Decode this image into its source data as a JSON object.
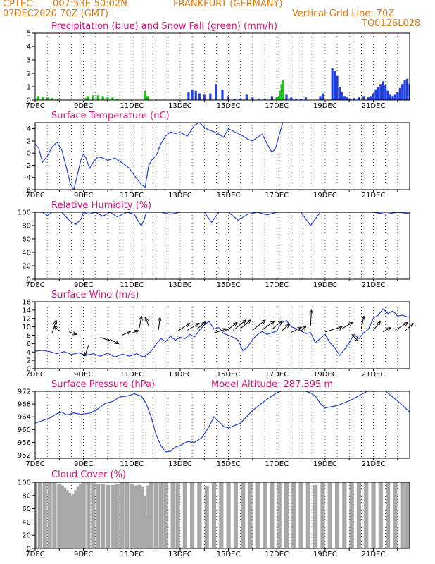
{
  "header": {
    "line1_left": "CPTEC:",
    "coords": "007:53E-50:02N",
    "location": "FRANKFURT (GERMANY)",
    "date": "07DEC2020 70Z (GMT)",
    "vgrid": "Vertical Grid Line: 70Z",
    "code": "TQ0126L028"
  },
  "x_categories": [
    "7DEC",
    "9DEC",
    "11DEC",
    "13DEC",
    "15DEC",
    "17DEC",
    "19DEC",
    "21DEC"
  ],
  "colors": {
    "blue": "#1f3fe0",
    "green": "#18c418",
    "gray": "#a8a8a8",
    "title": "#e0107a",
    "header": "#e07a10"
  },
  "chart_data": [
    {
      "type": "bar",
      "title": "Precipitation (blue) and Snow Fall (green) (mm/h)",
      "xlim": [
        0,
        15.5
      ],
      "ylim": [
        0,
        5
      ],
      "yticks": [
        0,
        1,
        2,
        3,
        4,
        5
      ],
      "series": [
        {
          "name": "Precipitation",
          "color": "#1f3fe0",
          "x": [
            6.35,
            6.5,
            6.65,
            6.8,
            7.0,
            7.25,
            7.5,
            7.75,
            8.0,
            8.25,
            8.5,
            8.75,
            9.0,
            9.25,
            9.5,
            9.8,
            10.0,
            10.2,
            10.4,
            10.6,
            10.8,
            11.0,
            11.2,
            11.8,
            11.9,
            12.3,
            12.4,
            12.5,
            12.6,
            12.7,
            12.8,
            12.9,
            13.0,
            13.2,
            13.4,
            13.6,
            13.8,
            13.9,
            14.0,
            14.1,
            14.2,
            14.3,
            14.4,
            14.5,
            14.6,
            14.7,
            14.8,
            14.9,
            15.0,
            15.1,
            15.2,
            15.3,
            15.4,
            15.5
          ],
          "values": [
            0.6,
            0.8,
            0.7,
            0.5,
            0.4,
            0.5,
            1.2,
            0.8,
            0.3,
            0.1,
            0.1,
            0.4,
            0.2,
            0.1,
            0.1,
            0.3,
            0.2,
            0.3,
            0.4,
            0.2,
            0.1,
            0.1,
            0.2,
            0.3,
            0.5,
            2.4,
            2.2,
            1.8,
            1.0,
            0.6,
            0.3,
            0.2,
            0.1,
            0.15,
            0.2,
            0.3,
            0.2,
            0.3,
            0.5,
            0.8,
            1.0,
            1.2,
            1.4,
            1.1,
            0.7,
            0.4,
            0.3,
            0.4,
            0.6,
            0.9,
            1.2,
            1.5,
            1.6,
            1.2
          ]
        },
        {
          "name": "Snow Fall",
          "color": "#18c418",
          "x": [
            0.1,
            0.3,
            0.5,
            0.7,
            0.9,
            2.1,
            2.2,
            2.4,
            2.6,
            2.8,
            3.0,
            3.2,
            3.4,
            4.55,
            4.65,
            10.0,
            10.1,
            10.15,
            10.2,
            10.25
          ],
          "values": [
            0.3,
            0.25,
            0.2,
            0.15,
            0.1,
            0.15,
            0.3,
            0.35,
            0.35,
            0.3,
            0.25,
            0.2,
            0.1,
            0.7,
            0.3,
            0.2,
            0.3,
            0.7,
            1.2,
            1.5
          ]
        }
      ]
    },
    {
      "type": "line",
      "title": "Surface Temperature (nC)",
      "xlim": [
        0,
        15.5
      ],
      "ylim": [
        -6,
        5
      ],
      "yticks": [
        -6,
        -4,
        -2,
        0,
        2,
        4
      ],
      "series": [
        {
          "color": "#1f3fe0",
          "x": [
            0,
            0.15,
            0.3,
            0.5,
            0.7,
            0.9,
            1.1,
            1.3,
            1.45,
            1.6,
            1.75,
            1.9,
            2.0,
            2.1,
            2.25,
            2.4,
            2.6,
            2.8,
            3.0,
            3.3,
            3.6,
            3.9,
            4.2,
            4.4,
            4.55,
            4.7,
            4.85,
            5.0,
            5.2,
            5.4,
            5.6,
            5.8,
            6.0,
            6.3,
            6.6,
            6.8,
            7.0,
            7.2,
            7.4,
            7.6,
            7.8,
            8.0,
            8.2,
            8.4,
            8.6,
            8.8,
            9.0,
            9.2,
            9.4,
            9.6,
            9.8,
            9.95,
            10.1,
            10.25
          ],
          "values": [
            1.5,
            0.8,
            -1.5,
            -0.5,
            1.0,
            1.8,
            0.5,
            -2.5,
            -5.0,
            -6.0,
            -3.5,
            -1.0,
            -0.2,
            -0.8,
            -2.5,
            -1.5,
            -0.6,
            -0.8,
            -1.2,
            -0.8,
            -1.6,
            -2.5,
            -4.2,
            -5.2,
            -5.6,
            -2.0,
            -1.0,
            -0.5,
            1.5,
            2.8,
            3.5,
            3.2,
            3.4,
            2.8,
            4.6,
            5.0,
            4.2,
            3.8,
            3.5,
            3.1,
            2.6,
            4.0,
            3.6,
            3.2,
            2.8,
            2.3,
            2.0,
            2.6,
            3.1,
            1.5,
            0.1,
            0.8,
            3.0,
            5.0
          ]
        }
      ]
    },
    {
      "type": "line",
      "title": "Relative Humidity (%)",
      "xlim": [
        0,
        15.5
      ],
      "ylim": [
        0,
        100
      ],
      "yticks": [
        0,
        20,
        40,
        60,
        80,
        100
      ],
      "series": [
        {
          "color": "#1f3fe0",
          "x": [
            0,
            0.3,
            0.5,
            0.7,
            0.9,
            1.1,
            1.3,
            1.5,
            1.7,
            1.9,
            2.0,
            2.2,
            2.5,
            2.8,
            3.1,
            3.4,
            3.8,
            4.1,
            4.3,
            4.4,
            4.5,
            4.6,
            4.8,
            5.2,
            5.6,
            6.0,
            6.4,
            6.8,
            7.0,
            7.3,
            7.6,
            7.8,
            8.0,
            8.4,
            8.8,
            9.2,
            9.6,
            10.0,
            10.5,
            11.0,
            11.2,
            11.4,
            11.6,
            11.8,
            12.0,
            12.5,
            13.0,
            13.5,
            14.0,
            14.5,
            15.0,
            15.5
          ],
          "values": [
            100,
            100,
            95,
            100,
            100,
            100,
            92,
            85,
            82,
            90,
            100,
            97,
            100,
            94,
            100,
            93,
            100,
            97,
            84,
            80,
            88,
            100,
            100,
            100,
            97,
            100,
            100,
            100,
            100,
            85,
            100,
            100,
            100,
            88,
            97,
            100,
            96,
            100,
            100,
            100,
            90,
            80,
            90,
            100,
            100,
            100,
            100,
            100,
            100,
            97,
            100,
            98
          ]
        }
      ]
    },
    {
      "type": "line",
      "title": "Surface Wind (m/s)",
      "xlim": [
        0,
        15.5
      ],
      "ylim": [
        0,
        16
      ],
      "yticks": [
        0,
        2,
        4,
        6,
        8,
        10,
        12,
        14,
        16
      ],
      "series": [
        {
          "color": "#1f3fe0",
          "x": [
            0,
            0.3,
            0.6,
            0.9,
            1.2,
            1.5,
            1.8,
            2.1,
            2.4,
            2.7,
            3.0,
            3.3,
            3.6,
            3.9,
            4.2,
            4.5,
            4.8,
            5.0,
            5.2,
            5.4,
            5.6,
            5.8,
            6.0,
            6.2,
            6.4,
            6.6,
            6.8,
            7.0,
            7.2,
            7.4,
            7.6,
            7.8,
            8.0,
            8.2,
            8.4,
            8.6,
            8.8,
            9.0,
            9.2,
            9.4,
            9.6,
            9.8,
            10.0,
            10.2,
            10.4,
            10.6,
            10.8,
            11.0,
            11.2,
            11.4,
            11.6,
            11.8,
            12.0,
            12.2,
            12.4,
            12.6,
            12.8,
            13.0,
            13.2,
            13.4,
            13.6,
            13.8,
            14.0,
            14.2,
            14.4,
            14.6,
            14.8,
            15.0,
            15.2,
            15.4,
            15.5
          ],
          "values": [
            4.2,
            4.4,
            4.1,
            3.6,
            4.1,
            3.4,
            3.8,
            3.2,
            3.6,
            3.0,
            3.7,
            2.8,
            3.5,
            3.0,
            3.6,
            2.8,
            4.2,
            5.8,
            7.2,
            6.5,
            7.8,
            6.8,
            7.5,
            7.2,
            8.2,
            7.6,
            9.2,
            10.5,
            11.3,
            9.5,
            9.8,
            8.4,
            8.0,
            7.5,
            6.8,
            4.3,
            5.2,
            7.0,
            8.2,
            8.9,
            8.2,
            8.6,
            9.0,
            11.0,
            11.5,
            10.0,
            9.6,
            9.0,
            8.4,
            8.6,
            6.2,
            7.2,
            8.2,
            6.2,
            5.0,
            3.2,
            4.6,
            6.2,
            8.2,
            7.2,
            8.6,
            9.5,
            12.1,
            12.8,
            14.3,
            13.2,
            13.8,
            12.6,
            12.8,
            12.4,
            12.4
          ]
        }
      ],
      "vectors": [
        {
          "x": 0.7,
          "y": 8.5,
          "u": 0.5,
          "v": 1.5
        },
        {
          "x": 1.0,
          "y": 9.0,
          "u": -0.6,
          "v": 0.6
        },
        {
          "x": 1.4,
          "y": 8.8,
          "u": 0.9,
          "v": -0.3
        },
        {
          "x": 2.2,
          "y": 5.5,
          "u": -0.4,
          "v": -1.2
        },
        {
          "x": 2.7,
          "y": 7.5,
          "u": 1.1,
          "v": -0.4
        },
        {
          "x": 3.1,
          "y": 7.0,
          "u": 1.0,
          "v": -0.5
        },
        {
          "x": 3.6,
          "y": 8.0,
          "u": 1.0,
          "v": 0.5
        },
        {
          "x": 4.0,
          "y": 8.5,
          "u": 0.8,
          "v": 0.3
        },
        {
          "x": 4.3,
          "y": 9.5,
          "u": 0.3,
          "v": 1.5
        },
        {
          "x": 4.7,
          "y": 10.2,
          "u": -0.4,
          "v": 1.0
        },
        {
          "x": 5.1,
          "y": 9.2,
          "u": 0.2,
          "v": 1.5
        },
        {
          "x": 5.9,
          "y": 9.0,
          "u": 1.4,
          "v": 0.9
        },
        {
          "x": 6.3,
          "y": 9.2,
          "u": 1.4,
          "v": 0.8
        },
        {
          "x": 6.7,
          "y": 9.5,
          "u": 1.0,
          "v": 0.8
        },
        {
          "x": 7.4,
          "y": 8.5,
          "u": 1.5,
          "v": 0.5
        },
        {
          "x": 7.9,
          "y": 9.0,
          "u": 1.3,
          "v": 1.0
        },
        {
          "x": 8.2,
          "y": 9.2,
          "u": 1.5,
          "v": 1.2
        },
        {
          "x": 8.5,
          "y": 9.6,
          "u": 1.2,
          "v": 1.0
        },
        {
          "x": 9.0,
          "y": 9.2,
          "u": 1.5,
          "v": 1.2
        },
        {
          "x": 9.4,
          "y": 9.3,
          "u": 1.4,
          "v": 1.0
        },
        {
          "x": 9.8,
          "y": 9.4,
          "u": 1.2,
          "v": 1.0
        },
        {
          "x": 10.2,
          "y": 9.0,
          "u": 0.9,
          "v": 0.8
        },
        {
          "x": 10.6,
          "y": 8.7,
          "u": 1.2,
          "v": 0.6
        },
        {
          "x": 11.0,
          "y": 9.0,
          "u": 0.6,
          "v": 0.6
        },
        {
          "x": 11.4,
          "y": 10.3,
          "u": 0.1,
          "v": 1.8
        },
        {
          "x": 12.0,
          "y": 8.8,
          "u": 2.0,
          "v": 0.6
        },
        {
          "x": 12.6,
          "y": 9.2,
          "u": 1.5,
          "v": 0.9
        },
        {
          "x": 13.1,
          "y": 8.2,
          "u": 0.8,
          "v": -0.8
        },
        {
          "x": 13.5,
          "y": 9.5,
          "u": 0.3,
          "v": 1.5
        },
        {
          "x": 14.0,
          "y": 9.2,
          "u": 0.8,
          "v": 1.0
        },
        {
          "x": 14.4,
          "y": 8.8,
          "u": 0.9,
          "v": 0.5
        },
        {
          "x": 14.9,
          "y": 9.2,
          "u": 1.5,
          "v": 0.9
        },
        {
          "x": 15.3,
          "y": 9.0,
          "u": 1.0,
          "v": 0.9
        }
      ]
    },
    {
      "type": "line",
      "title": "Surface Pressure (hPa)",
      "annotation": "Model Altitude: 287.395 m",
      "xlim": [
        0,
        15.5
      ],
      "ylim": [
        951,
        972
      ],
      "yticks": [
        952,
        956,
        960,
        964,
        968,
        972
      ],
      "series": [
        {
          "color": "#1f3fe0",
          "x": [
            0,
            0.3,
            0.6,
            0.9,
            1.1,
            1.3,
            1.6,
            1.9,
            2.3,
            2.6,
            2.9,
            3.2,
            3.5,
            3.8,
            4.1,
            4.4,
            4.6,
            4.8,
            5.0,
            5.2,
            5.4,
            5.6,
            5.8,
            6.0,
            6.3,
            6.6,
            6.9,
            7.2,
            7.4,
            7.6,
            7.8,
            8.0,
            8.5,
            9.0,
            9.5,
            10.0,
            10.5,
            11.0,
            11.2,
            11.4,
            11.6,
            11.8,
            12.0,
            12.5,
            13.0,
            13.5,
            14.0,
            14.5,
            15.0,
            15.5
          ],
          "values": [
            962,
            962.8,
            963.6,
            965,
            965.5,
            964.6,
            965.2,
            964.8,
            965.2,
            966.5,
            968.2,
            968.8,
            970.2,
            970.5,
            971.2,
            970.5,
            968,
            964,
            958.5,
            955,
            953,
            953.2,
            954.5,
            955,
            956.2,
            956,
            957.5,
            961,
            964,
            962.5,
            961,
            960.5,
            962,
            966,
            969,
            971.5,
            973,
            973,
            972,
            971.5,
            970.5,
            968.2,
            966.8,
            967.5,
            969,
            971,
            973,
            972,
            969,
            965.5
          ]
        }
      ]
    },
    {
      "type": "bar",
      "title": "Cloud Cover (%)",
      "xlim": [
        0,
        15.5
      ],
      "ylim": [
        0,
        100
      ],
      "yticks": [
        0,
        20,
        40,
        60,
        80,
        100
      ],
      "series": [
        {
          "color": "#a8a8a8",
          "x": [
            0,
            0.2,
            0.4,
            0.6,
            0.8,
            1.0,
            1.1,
            1.2,
            1.3,
            1.4,
            1.5,
            1.6,
            1.7,
            1.8,
            1.9,
            2.0,
            2.2,
            2.4,
            2.6,
            2.8,
            3.0,
            3.2,
            3.4,
            3.6,
            3.8,
            4.0,
            4.1,
            4.2,
            4.3,
            4.4,
            4.5,
            4.6,
            4.7,
            4.8,
            5.0,
            5.2,
            5.4,
            5.55,
            5.7,
            5.9,
            6.2,
            6.5,
            6.8,
            7.1,
            7.4,
            7.7,
            8.0,
            8.3,
            8.6,
            8.9,
            9.2,
            9.5,
            9.8,
            10.1,
            10.4,
            10.7,
            11.0,
            11.3,
            11.6,
            11.9,
            12.2,
            12.5,
            12.8,
            13.1,
            13.4,
            13.7,
            14.0,
            14.3,
            14.6,
            14.9,
            15.2,
            15.4
          ],
          "values": [
            100,
            100,
            100,
            100,
            100,
            98,
            95,
            92,
            88,
            84,
            80,
            82,
            88,
            93,
            97,
            100,
            100,
            99,
            98,
            97,
            96,
            96,
            98,
            100,
            100,
            98,
            93,
            95,
            96,
            93,
            80,
            50,
            95,
            100,
            100,
            100,
            100,
            0,
            100,
            100,
            100,
            100,
            100,
            94,
            100,
            100,
            100,
            100,
            100,
            100,
            100,
            100,
            100,
            100,
            100,
            100,
            100,
            100,
            96,
            100,
            100,
            100,
            100,
            100,
            100,
            100,
            100,
            100,
            100,
            100,
            100,
            100
          ]
        }
      ]
    }
  ]
}
